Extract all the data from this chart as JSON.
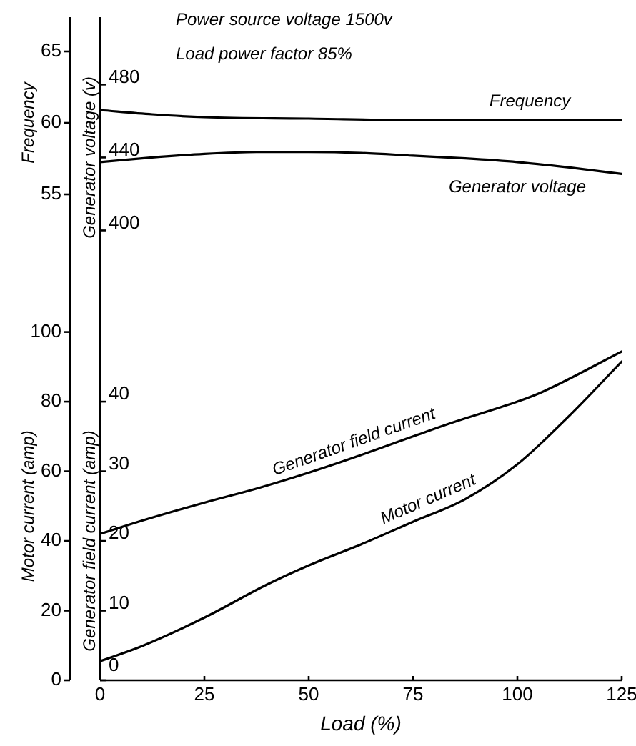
{
  "chart_data": [
    {
      "type": "line",
      "annotations": [
        "Power source voltage 1500v",
        "Load power factor 85%"
      ],
      "ylabel": "Frequency",
      "y2label": "Generator voltage (v)",
      "xlim": [
        0,
        125
      ],
      "tick_labels": "y",
      "ylim": [
        46.1,
        67.4
      ],
      "yticks": [
        55,
        60,
        65
      ],
      "y2lim": [
        350,
        517
      ],
      "y2ticks": [
        400,
        440,
        480
      ],
      "marker": "none",
      "series": [
        {
          "name": "Frequency",
          "color": "#000000",
          "x": [
            0,
            12.5,
            25,
            50,
            75,
            100,
            125
          ],
          "values": [
            60.9,
            60.6,
            60.4,
            60.3,
            60.2,
            60.2,
            60.2
          ]
        },
        {
          "name": "Generator voltage",
          "color": "#000000",
          "axis": "y2",
          "x": [
            0,
            12.5,
            25,
            37.5,
            50,
            62.5,
            75,
            87.5,
            100,
            112.5,
            125
          ],
          "values": [
            437.5,
            440,
            442,
            443,
            443,
            442.5,
            441,
            439.5,
            437.5,
            434.5,
            431
          ]
        }
      ]
    },
    {
      "type": "line",
      "xlabel": "Load (%)",
      "ylabel": "Motor current (amp)",
      "y2label": "Generator field current (amp)",
      "xlim": [
        0,
        125
      ],
      "xticks": [
        0,
        25,
        50,
        75,
        100,
        125
      ],
      "ylim": [
        0,
        103
      ],
      "yticks": [
        0,
        20,
        40,
        60,
        80,
        100
      ],
      "y2lim": [
        0,
        51.5
      ],
      "y2ticks": [
        0,
        10,
        20,
        30,
        40
      ],
      "marker": "none",
      "series": [
        {
          "name": "Generator field current",
          "color": "#000000",
          "axis": "y2",
          "x": [
            0,
            10,
            25,
            38,
            50,
            60,
            75,
            84,
            100,
            106,
            125
          ],
          "values": [
            21,
            22.9,
            25.5,
            27.6,
            29.8,
            31.8,
            35,
            36.9,
            40,
            41.4,
            47.2
          ]
        },
        {
          "name": "Motor current",
          "color": "#000000",
          "x": [
            0,
            10,
            25,
            40,
            50,
            62.5,
            75,
            87.5,
            100,
            112.5,
            125
          ],
          "values": [
            5.5,
            9.8,
            18,
            27.5,
            33,
            39,
            45.5,
            52,
            62,
            76,
            91.5
          ]
        }
      ]
    }
  ]
}
